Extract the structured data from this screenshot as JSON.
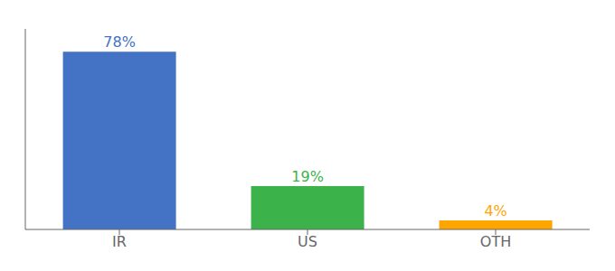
{
  "chart_data": {
    "type": "bar",
    "categories": [
      "IR",
      "US",
      "OTH"
    ],
    "values": [
      78,
      19,
      4
    ],
    "value_labels": [
      "78%",
      "19%",
      "4%"
    ],
    "colors": [
      "#4472C4",
      "#3CB34A",
      "#FFA500"
    ],
    "ylim": [
      0,
      88
    ],
    "data_labels": true,
    "tick_labels": "x",
    "grid": false
  }
}
